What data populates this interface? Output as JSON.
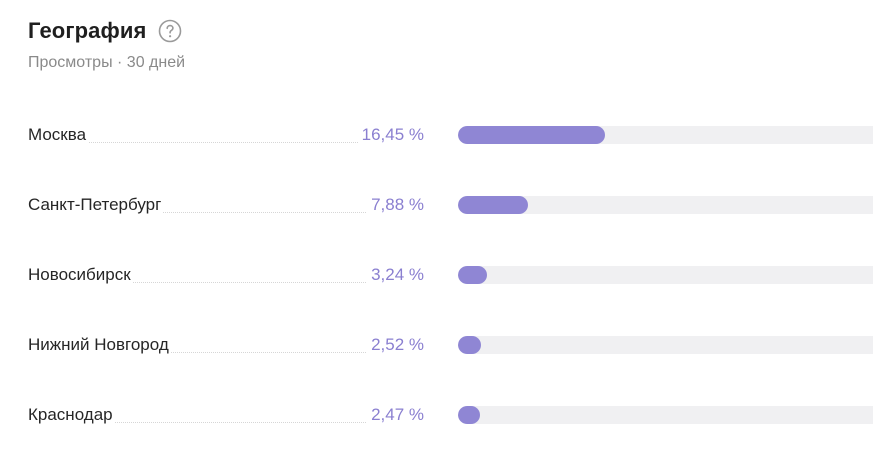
{
  "widget": {
    "title": "География",
    "help_icon": "question-circle-icon",
    "subtitle": "Просмотры · 30 дней"
  },
  "colors": {
    "bar_fill": "#8f86d4",
    "bar_track": "#f0f0f2",
    "percent_text": "#8a7fd0"
  },
  "cities": [
    {
      "name": "Москва",
      "percent_label": "16,45 %",
      "value": 16.45
    },
    {
      "name": "Санкт-Петербург",
      "percent_label": "7,88 %",
      "value": 7.88
    },
    {
      "name": "Новосибирск",
      "percent_label": "3,24 %",
      "value": 3.24
    },
    {
      "name": "Нижний Новгород",
      "percent_label": "2,52 %",
      "value": 2.52
    },
    {
      "name": "Краснодар",
      "percent_label": "2,47 %",
      "value": 2.47
    }
  ]
}
